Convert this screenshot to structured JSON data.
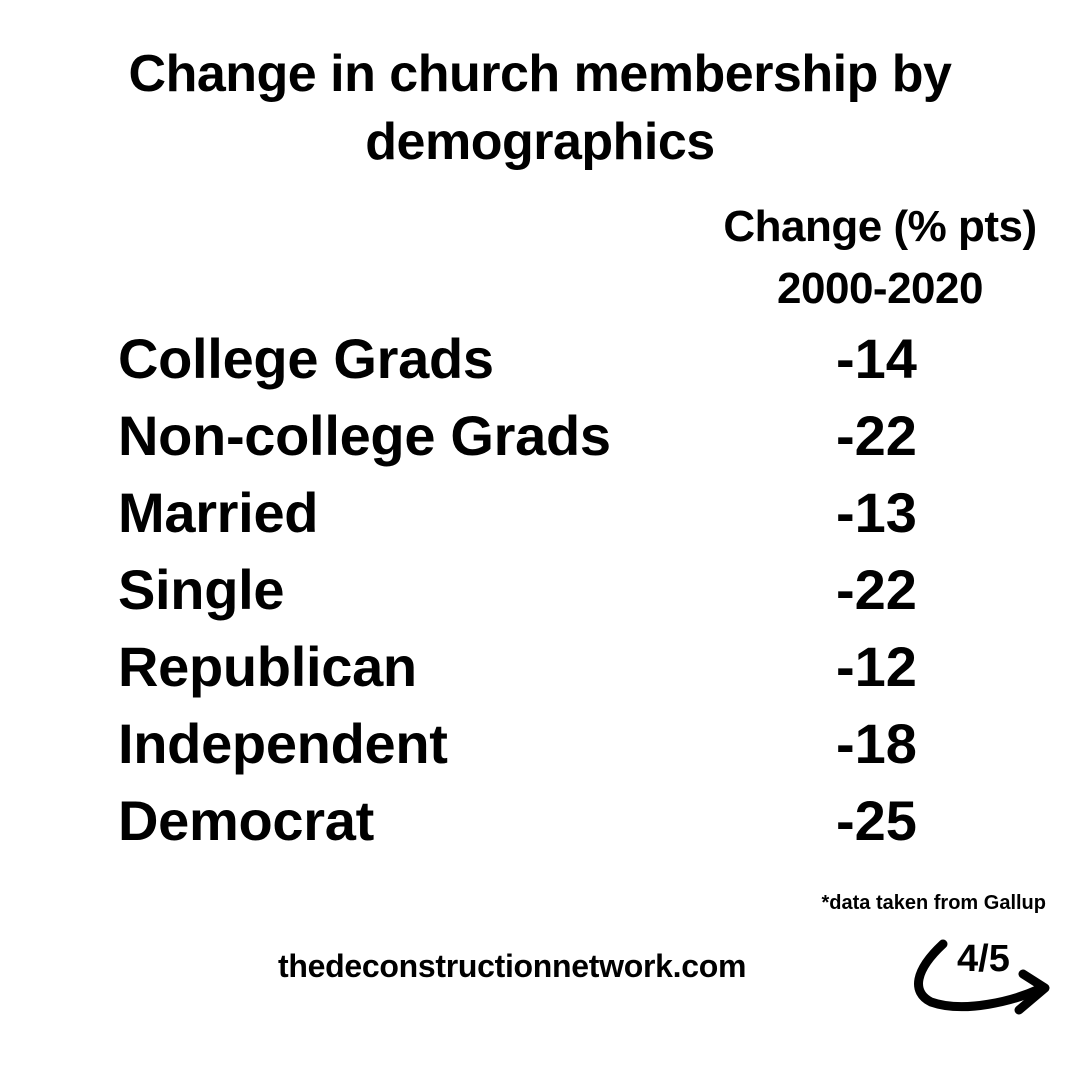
{
  "chart_data": {
    "type": "table",
    "title": "Change in church membership by demographics",
    "column_header": [
      "Change (% pts)",
      "2000-2020"
    ],
    "categories": [
      "College Grads",
      "Non-college Grads",
      "Married",
      "Single",
      "Republican",
      "Independent",
      "Democrat"
    ],
    "values": [
      -14,
      -22,
      -13,
      -22,
      -12,
      -18,
      -25
    ]
  },
  "rows": [
    {
      "label": "College Grads",
      "value": "-14"
    },
    {
      "label": "Non-college Grads",
      "value": "-22"
    },
    {
      "label": "Married",
      "value": "-13"
    },
    {
      "label": "Single",
      "value": "-22"
    },
    {
      "label": "Republican",
      "value": "-12"
    },
    {
      "label": "Independent",
      "value": "-18"
    },
    {
      "label": "Democrat",
      "value": "-25"
    }
  ],
  "footer": {
    "source": "*data taken from Gallup",
    "website": "thedeconstructionnetwork.com",
    "page": "4/5",
    "arrow_icon": "curved-arrow-right-icon"
  }
}
